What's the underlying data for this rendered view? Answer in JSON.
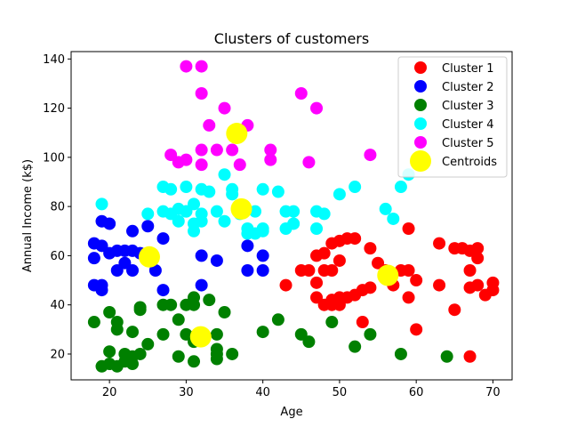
{
  "chart_data": {
    "type": "scatter",
    "title": "Clusters of customers",
    "xlabel": "Age",
    "ylabel": "Annual Income (k$)",
    "xlim": [
      15,
      72.5
    ],
    "ylim": [
      9.5,
      143
    ],
    "xticks": [
      20,
      30,
      40,
      50,
      60,
      70
    ],
    "yticks": [
      20,
      40,
      60,
      80,
      100,
      120,
      140
    ],
    "grid": false,
    "legend_position": "top-right",
    "series": [
      {
        "name": "Cluster 1",
        "color": "#ff0000",
        "points": [
          [
            43,
            48
          ],
          [
            45,
            54
          ],
          [
            46,
            54
          ],
          [
            47,
            60
          ],
          [
            47,
            49
          ],
          [
            47,
            43
          ],
          [
            48,
            40
          ],
          [
            48,
            61
          ],
          [
            48,
            54
          ],
          [
            49,
            40
          ],
          [
            49,
            42
          ],
          [
            49,
            54
          ],
          [
            49,
            65
          ],
          [
            50,
            40
          ],
          [
            50,
            43
          ],
          [
            50,
            58
          ],
          [
            50,
            66
          ],
          [
            51,
            43
          ],
          [
            51,
            67
          ],
          [
            52,
            44
          ],
          [
            52,
            67
          ],
          [
            53,
            46
          ],
          [
            53,
            33
          ],
          [
            54,
            63
          ],
          [
            54,
            47
          ],
          [
            55,
            57
          ],
          [
            56,
            54
          ],
          [
            57,
            48
          ],
          [
            58,
            54
          ],
          [
            59,
            54
          ],
          [
            59,
            43
          ],
          [
            59,
            71
          ],
          [
            60,
            50
          ],
          [
            60,
            30
          ],
          [
            63,
            65
          ],
          [
            63,
            48
          ],
          [
            65,
            38
          ],
          [
            65,
            63
          ],
          [
            66,
            63
          ],
          [
            67,
            62
          ],
          [
            67,
            54
          ],
          [
            67,
            47
          ],
          [
            67,
            19
          ],
          [
            68,
            63
          ],
          [
            68,
            59
          ],
          [
            68,
            48
          ],
          [
            69,
            44
          ],
          [
            70,
            46
          ],
          [
            70,
            49
          ]
        ]
      },
      {
        "name": "Cluster 2",
        "color": "#0000ff",
        "points": [
          [
            18,
            65
          ],
          [
            18,
            59
          ],
          [
            18,
            48
          ],
          [
            19,
            46
          ],
          [
            19,
            48
          ],
          [
            19,
            64
          ],
          [
            19,
            74
          ],
          [
            20,
            73
          ],
          [
            20,
            61
          ],
          [
            21,
            54
          ],
          [
            21,
            62
          ],
          [
            22,
            57
          ],
          [
            22,
            62
          ],
          [
            23,
            54
          ],
          [
            23,
            70
          ],
          [
            23,
            62
          ],
          [
            24,
            61
          ],
          [
            25,
            72
          ],
          [
            26,
            54
          ],
          [
            27,
            67
          ],
          [
            27,
            46
          ],
          [
            32,
            48
          ],
          [
            32,
            60
          ],
          [
            34,
            58
          ],
          [
            38,
            64
          ],
          [
            38,
            54
          ],
          [
            40,
            54
          ],
          [
            40,
            60
          ]
        ]
      },
      {
        "name": "Cluster 3",
        "color": "#008000",
        "points": [
          [
            18,
            33
          ],
          [
            19,
            15
          ],
          [
            20,
            16
          ],
          [
            20,
            37
          ],
          [
            20,
            21
          ],
          [
            21,
            33
          ],
          [
            21,
            30
          ],
          [
            21,
            15
          ],
          [
            22,
            17
          ],
          [
            22,
            20
          ],
          [
            23,
            19
          ],
          [
            23,
            16
          ],
          [
            23,
            29
          ],
          [
            24,
            20
          ],
          [
            24,
            38
          ],
          [
            24,
            39
          ],
          [
            25,
            24
          ],
          [
            27,
            40
          ],
          [
            27,
            28
          ],
          [
            28,
            40
          ],
          [
            29,
            34
          ],
          [
            29,
            19
          ],
          [
            30,
            40
          ],
          [
            30,
            28
          ],
          [
            31,
            17
          ],
          [
            31,
            43
          ],
          [
            31,
            40
          ],
          [
            31,
            25
          ],
          [
            32,
            28
          ],
          [
            33,
            42
          ],
          [
            34,
            22
          ],
          [
            34,
            18
          ],
          [
            34,
            20
          ],
          [
            34,
            28
          ],
          [
            35,
            37
          ],
          [
            36,
            20
          ],
          [
            40,
            29
          ],
          [
            42,
            34
          ],
          [
            45,
            28
          ],
          [
            46,
            25
          ],
          [
            49,
            33
          ],
          [
            52,
            23
          ],
          [
            54,
            28
          ],
          [
            58,
            20
          ],
          [
            64,
            19
          ]
        ]
      },
      {
        "name": "Cluster 4",
        "color": "#00ffff",
        "points": [
          [
            19,
            81
          ],
          [
            25,
            77
          ],
          [
            27,
            78
          ],
          [
            27,
            88
          ],
          [
            28,
            77
          ],
          [
            28,
            87
          ],
          [
            29,
            79
          ],
          [
            29,
            74
          ],
          [
            30,
            78
          ],
          [
            30,
            78
          ],
          [
            30,
            88
          ],
          [
            31,
            73
          ],
          [
            31,
            70
          ],
          [
            31,
            81
          ],
          [
            32,
            74
          ],
          [
            32,
            77
          ],
          [
            32,
            87
          ],
          [
            33,
            86
          ],
          [
            34,
            78
          ],
          [
            35,
            74
          ],
          [
            35,
            93
          ],
          [
            36,
            87
          ],
          [
            36,
            85
          ],
          [
            37,
            77
          ],
          [
            38,
            69
          ],
          [
            38,
            71
          ],
          [
            39,
            78
          ],
          [
            39,
            69
          ],
          [
            40,
            70
          ],
          [
            40,
            87
          ],
          [
            40,
            71
          ],
          [
            42,
            86
          ],
          [
            43,
            71
          ],
          [
            43,
            78
          ],
          [
            44,
            73
          ],
          [
            44,
            78
          ],
          [
            47,
            71
          ],
          [
            47,
            78
          ],
          [
            48,
            77
          ],
          [
            50,
            85
          ],
          [
            52,
            88
          ],
          [
            56,
            79
          ],
          [
            57,
            75
          ],
          [
            58,
            88
          ],
          [
            59,
            93
          ]
        ]
      },
      {
        "name": "Cluster 5",
        "color": "#ff00ff",
        "points": [
          [
            28,
            101
          ],
          [
            29,
            98
          ],
          [
            30,
            99
          ],
          [
            30,
            137
          ],
          [
            32,
            97
          ],
          [
            32,
            137
          ],
          [
            32,
            103
          ],
          [
            32,
            126
          ],
          [
            33,
            113
          ],
          [
            34,
            103
          ],
          [
            35,
            120
          ],
          [
            36,
            103
          ],
          [
            37,
            97
          ],
          [
            38,
            113
          ],
          [
            41,
            99
          ],
          [
            41,
            103
          ],
          [
            45,
            126
          ],
          [
            46,
            98
          ],
          [
            47,
            120
          ],
          [
            54,
            101
          ]
        ]
      },
      {
        "name": "Centroids",
        "color": "#ffff00",
        "points": [
          [
            25.2,
            59.5
          ],
          [
            31.9,
            27
          ],
          [
            36.6,
            109.7
          ],
          [
            37.2,
            79
          ],
          [
            56.3,
            52
          ]
        ]
      }
    ]
  }
}
